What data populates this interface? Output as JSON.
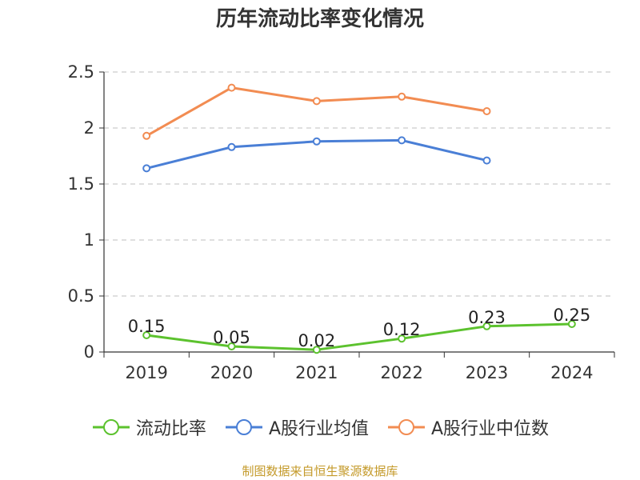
{
  "title": "历年流动比率变化情况",
  "source": "制图数据来自恒生聚源数据库",
  "chart_data": {
    "type": "line",
    "categories": [
      "2019",
      "2020",
      "2021",
      "2022",
      "2023",
      "2024"
    ],
    "ylim": [
      0,
      2.5
    ],
    "yticks": [
      "0",
      "0.5",
      "1",
      "1.5",
      "2",
      "2.5"
    ],
    "grid": true,
    "legend_position": "bottom",
    "series": [
      {
        "name": "流动比率",
        "color": "#5cc22e",
        "values": [
          0.15,
          0.05,
          0.02,
          0.12,
          0.23,
          0.25
        ],
        "labels": [
          "0.15",
          "0.05",
          "0.02",
          "0.12",
          "0.23",
          "0.25"
        ]
      },
      {
        "name": "A股行业均值",
        "color": "#4a7fd6",
        "values": [
          1.64,
          1.83,
          1.88,
          1.89,
          1.71,
          null
        ]
      },
      {
        "name": "A股行业中位数",
        "color": "#f28c52",
        "values": [
          1.93,
          2.36,
          2.24,
          2.28,
          2.15,
          null
        ]
      }
    ]
  }
}
